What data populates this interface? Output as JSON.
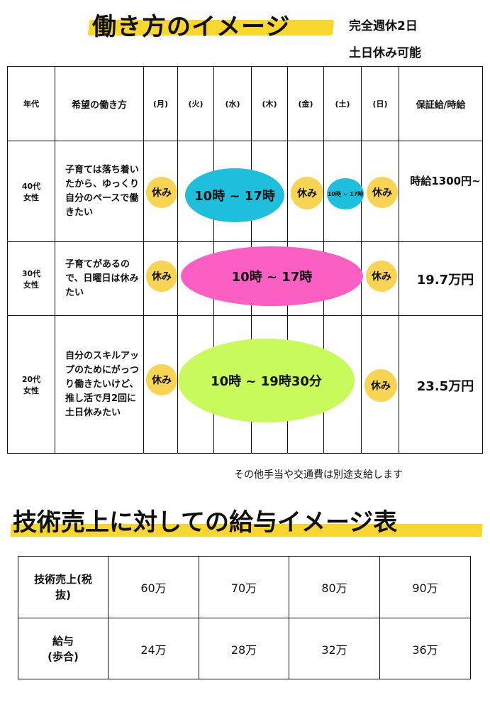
{
  "title": "働き方のイメージ",
  "subtitle_line1": "完全週休2日",
  "subtitle_line2": "土日休み可能",
  "schedule": {
    "headers": [
      "年代",
      "希望の働き方",
      "(月)",
      "(火)",
      "(水)",
      "(木)",
      "(金)",
      "(土)",
      "(日)",
      "保証給/時給"
    ],
    "rows": [
      {
        "age": "40代\n女性",
        "desc": "子育ては落ち着いたから、ゆっくり自分のペースで働きたい",
        "off_label": "休み",
        "weekday_hours": "10時 ~ 17時",
        "sat_hours": "10時 ~ 17時",
        "wage": "時給1300円~",
        "color_weekday": "#1ebfdc",
        "color_sat": "#1ebfdc"
      },
      {
        "age": "30代\n女性",
        "desc": "子育てがあるので、日曜日は休みたい",
        "off_label": "休み",
        "hours": "10時 ~ 17時",
        "wage": "19.7万円",
        "color": "#fb5fc4"
      },
      {
        "age": "20代\n女性",
        "desc": "自分のスキルアップのためにがっつり働きたいけど、推し活で月2回に土日休みたい",
        "off_label": "休み",
        "hours": "10時 ~ 19時30分",
        "wage": "23.5万円",
        "color": "#c7fa5a"
      }
    ]
  },
  "note": "その他手当や交通費は別途支給します",
  "salary_title": "技術売上に対しての給与イメージ表",
  "salary_table": {
    "row1_header": "技術売上(税\n抜)",
    "row1_values": [
      "60万",
      "70万",
      "80万",
      "90万"
    ],
    "row2_header": "給与\n(歩合)",
    "row2_values": [
      "24万",
      "28万",
      "32万",
      "36万"
    ]
  },
  "colors": {
    "highlight": "#f6d21a",
    "off_circle": "#f7d454"
  }
}
